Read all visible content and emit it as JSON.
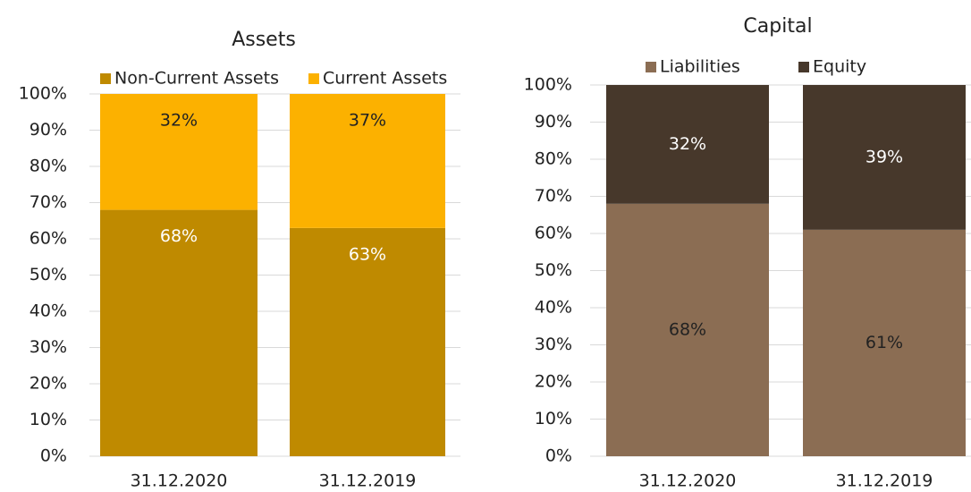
{
  "chart_data": [
    {
      "type": "stacked_bar",
      "title": "Assets",
      "categories": [
        "31.12.2020",
        "31.12.2019"
      ],
      "series": [
        {
          "name": "Non-Current Assets",
          "color": "#bf8a00",
          "label_color": "#ffffff",
          "values": [
            68,
            63
          ],
          "value_labels": [
            "68%",
            "63%"
          ]
        },
        {
          "name": "Current Assets",
          "color": "#fcb100",
          "label_color": "#222222",
          "values": [
            32,
            37
          ],
          "value_labels": [
            "32%",
            "37%"
          ]
        }
      ],
      "ylim": [
        0,
        100
      ],
      "yticks": [
        {
          "value": 0,
          "label": "0%"
        },
        {
          "value": 10,
          "label": "10%"
        },
        {
          "value": 20,
          "label": "20%"
        },
        {
          "value": 30,
          "label": "30%"
        },
        {
          "value": 40,
          "label": "40%"
        },
        {
          "value": 50,
          "label": "50%"
        },
        {
          "value": 60,
          "label": "60%"
        },
        {
          "value": 70,
          "label": "70%"
        },
        {
          "value": 80,
          "label": "80%"
        },
        {
          "value": 90,
          "label": "90%"
        },
        {
          "value": 100,
          "label": "100%"
        }
      ],
      "grid": true,
      "legend": "top"
    },
    {
      "type": "stacked_bar",
      "title": "Capital",
      "categories": [
        "31.12.2020",
        "31.12.2019"
      ],
      "series": [
        {
          "name": "Liabilities",
          "color": "#8b6d53",
          "label_color": "#222222",
          "values": [
            68,
            61
          ],
          "value_labels": [
            "68%",
            "61%"
          ]
        },
        {
          "name": "Equity",
          "color": "#47382b",
          "label_color": "#ffffff",
          "values": [
            32,
            39
          ],
          "value_labels": [
            "32%",
            "39%"
          ]
        }
      ],
      "ylim": [
        0,
        100
      ],
      "yticks": [
        {
          "value": 0,
          "label": "0%"
        },
        {
          "value": 10,
          "label": "10%"
        },
        {
          "value": 20,
          "label": "20%"
        },
        {
          "value": 30,
          "label": "30%"
        },
        {
          "value": 40,
          "label": "40%"
        },
        {
          "value": 50,
          "label": "50%"
        },
        {
          "value": 60,
          "label": "60%"
        },
        {
          "value": 70,
          "label": "70%"
        },
        {
          "value": 80,
          "label": "80%"
        },
        {
          "value": 90,
          "label": "90%"
        },
        {
          "value": 100,
          "label": "100%"
        }
      ],
      "grid": true,
      "legend": "top"
    }
  ]
}
